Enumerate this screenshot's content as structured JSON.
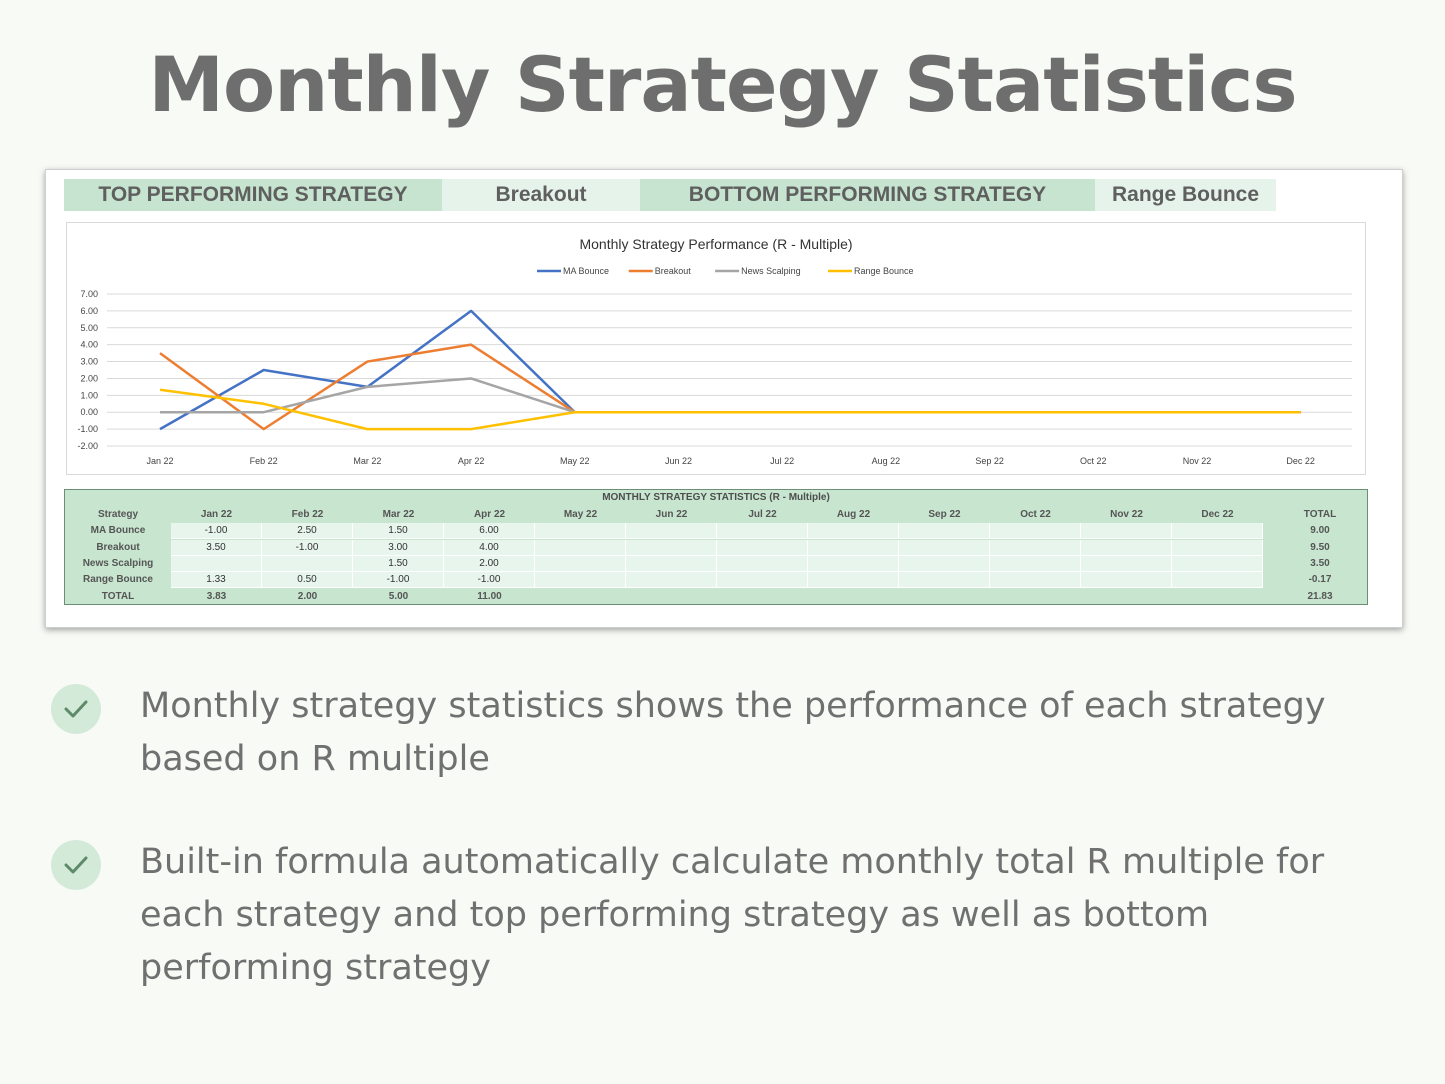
{
  "title": "Monthly Strategy Statistics",
  "banner": {
    "top_label": "TOP PERFORMING STRATEGY",
    "top_value": "Breakout",
    "bottom_label": "BOTTOM PERFORMING STRATEGY",
    "bottom_value": "Range Bounce"
  },
  "chart_data": {
    "type": "line",
    "title": "Monthly Strategy Performance (R - Multiple)",
    "categories": [
      "Jan 22",
      "Feb 22",
      "Mar 22",
      "Apr 22",
      "May 22",
      "Jun 22",
      "Jul 22",
      "Aug 22",
      "Sep 22",
      "Oct 22",
      "Nov 22",
      "Dec 22"
    ],
    "ylim": [
      -2,
      7
    ],
    "yticks": [
      "7.00",
      "6.00",
      "5.00",
      "4.00",
      "3.00",
      "2.00",
      "1.00",
      "0.00",
      "-1.00",
      "-2.00"
    ],
    "grid": true,
    "legend_position": "top",
    "series": [
      {
        "name": "MA Bounce",
        "color": "#4472c4",
        "values": [
          -1,
          2.5,
          1.5,
          6,
          0,
          0,
          0,
          0,
          0,
          0,
          0,
          0
        ]
      },
      {
        "name": "Breakout",
        "color": "#ed7d31",
        "values": [
          3.5,
          -1,
          3,
          4,
          0,
          0,
          0,
          0,
          0,
          0,
          0,
          0
        ]
      },
      {
        "name": "News Scalping",
        "color": "#a5a5a5",
        "values": [
          0,
          0,
          1.5,
          2,
          0,
          0,
          0,
          0,
          0,
          0,
          0,
          0
        ]
      },
      {
        "name": "Range Bounce",
        "color": "#ffc000",
        "values": [
          1.33,
          0.5,
          -1,
          -1,
          0,
          0,
          0,
          0,
          0,
          0,
          0,
          0
        ]
      }
    ]
  },
  "table": {
    "title": "MONTHLY STRATEGY STATISTICS (R - Multiple)",
    "headers": [
      "Strategy",
      "Jan 22",
      "Feb 22",
      "Mar 22",
      "Apr 22",
      "May 22",
      "Jun 22",
      "Jul 22",
      "Aug 22",
      "Sep 22",
      "Oct 22",
      "Nov 22",
      "Dec 22",
      "TOTAL"
    ],
    "rows": [
      {
        "label": "MA Bounce",
        "cells": [
          "-1.00",
          "2.50",
          "1.50",
          "6.00",
          "",
          "",
          "",
          "",
          "",
          "",
          "",
          ""
        ],
        "total": "9.00"
      },
      {
        "label": "Breakout",
        "cells": [
          "3.50",
          "-1.00",
          "3.00",
          "4.00",
          "",
          "",
          "",
          "",
          "",
          "",
          "",
          ""
        ],
        "total": "9.50"
      },
      {
        "label": "News Scalping",
        "cells": [
          "",
          "",
          "1.50",
          "2.00",
          "",
          "",
          "",
          "",
          "",
          "",
          "",
          ""
        ],
        "total": "3.50"
      },
      {
        "label": "Range Bounce",
        "cells": [
          "1.33",
          "0.50",
          "-1.00",
          "-1.00",
          "",
          "",
          "",
          "",
          "",
          "",
          "",
          ""
        ],
        "total": "-0.17"
      }
    ],
    "total_row": {
      "label": "TOTAL",
      "cells": [
        "3.83",
        "2.00",
        "5.00",
        "11.00",
        "",
        "",
        "",
        "",
        "",
        "",
        "",
        ""
      ],
      "total": "21.83"
    }
  },
  "bullets": [
    {
      "icon": "check-icon",
      "text": "Monthly strategy statistics shows the performance of each strategy based on R multiple"
    },
    {
      "icon": "check-icon",
      "text": "Built-in formula automatically calculate monthly total R multiple for each strategy and top performing strategy as well as bottom performing strategy"
    }
  ]
}
